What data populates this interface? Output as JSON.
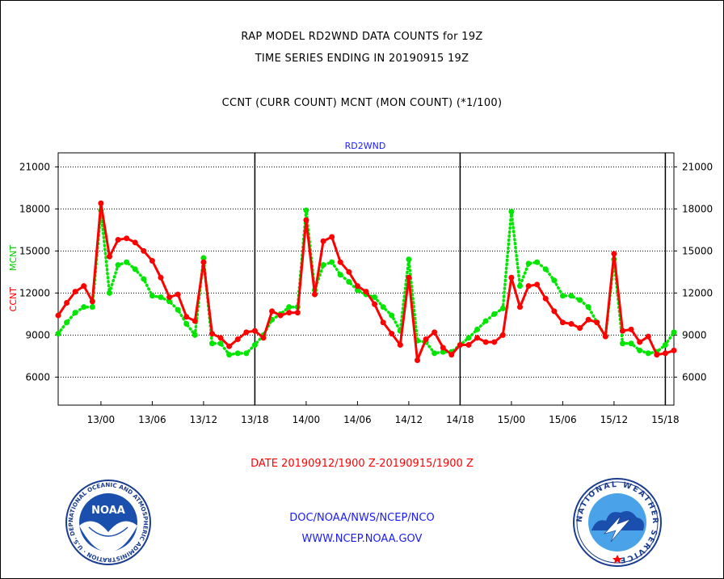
{
  "titles": {
    "line1": "RAP MODEL RD2WND DATA COUNTS for 19Z",
    "line2": "TIME SERIES ENDING IN 20190915 19Z",
    "line3": "CCNT (CURR COUNT) MCNT (MON COUNT) (*1/100)"
  },
  "footer": {
    "date_range": "DATE 20190912/1900 Z-20190915/1900 Z",
    "org": "DOC/NOAA/NWS/NCEP/NCO",
    "url": "WWW.NCEP.NOAA.GOV"
  },
  "logos": {
    "noaa_text": "NOAA",
    "noaa_ring": "NATIONAL OCEANIC AND ATMOSPHERIC ADMINISTRATION · U.S. DEPARTMENT OF COMMERCE ·",
    "nws_ring": "NATIONAL WEATHER SERVICE"
  },
  "colors": {
    "ccnt": "#ff0000",
    "mcnt": "#00e600",
    "label_blue": "#1a1aff"
  },
  "chart_data": {
    "type": "line",
    "title": "RD2WND",
    "ylabel_ccnt": "CCNT",
    "ylabel_mcnt": "MCNT",
    "ylim": [
      4000,
      22000
    ],
    "yticks": [
      6000,
      9000,
      12000,
      15000,
      18000,
      21000
    ],
    "ytick_labels": [
      "6000",
      "9000",
      "12000",
      "15000",
      "18000",
      "21000"
    ],
    "x_start_hour": 19,
    "x_hours": 72,
    "xticks": [
      {
        "hour": 24,
        "label": "13/00"
      },
      {
        "hour": 30,
        "label": "13/06"
      },
      {
        "hour": 36,
        "label": "13/12"
      },
      {
        "hour": 42,
        "label": "13/18"
      },
      {
        "hour": 48,
        "label": "14/00"
      },
      {
        "hour": 54,
        "label": "14/06"
      },
      {
        "hour": 60,
        "label": "14/12"
      },
      {
        "hour": 66,
        "label": "14/18"
      },
      {
        "hour": 72,
        "label": "15/00"
      },
      {
        "hour": 78,
        "label": "15/06"
      },
      {
        "hour": 84,
        "label": "15/12"
      },
      {
        "hour": 90,
        "label": "15/18"
      }
    ],
    "day_dividers": [
      42,
      66,
      90
    ],
    "grid": "horizontal-dotted",
    "series": [
      {
        "name": "CCNT",
        "values": [
          10400,
          11300,
          12100,
          12500,
          11400,
          18400,
          14600,
          15800,
          15900,
          15600,
          15000,
          14300,
          13100,
          11700,
          11900,
          10300,
          10000,
          14200,
          9100,
          8800,
          8200,
          8700,
          9200,
          9300,
          8800,
          10700,
          10400,
          10600,
          10600,
          17200,
          11900,
          15700,
          16000,
          14200,
          13500,
          12500,
          12100,
          11200,
          9900,
          9100,
          8300,
          13100,
          7200,
          8700,
          9200,
          8100,
          7600,
          8300,
          8300,
          8800,
          8500,
          8500,
          9000,
          13100,
          11000,
          12500,
          12600,
          11600,
          10700,
          9900,
          9800,
          9500,
          10100,
          9900,
          8900,
          14800,
          9300,
          9400,
          8500,
          8900,
          7600,
          7700,
          7900
        ]
      },
      {
        "name": "MCNT",
        "values": [
          9100,
          9900,
          10600,
          11000,
          11000,
          17900,
          12000,
          14000,
          14200,
          13700,
          13000,
          11800,
          11700,
          11400,
          10800,
          9800,
          9000,
          14500,
          8400,
          8400,
          7600,
          7700,
          7700,
          8300,
          9000,
          10100,
          10500,
          11000,
          11000,
          17900,
          12200,
          14000,
          14200,
          13300,
          12800,
          12200,
          11900,
          11700,
          11000,
          10400,
          9300,
          14400,
          8600,
          8500,
          7700,
          7800,
          7800,
          8300,
          8800,
          9400,
          10000,
          10500,
          10900,
          17800,
          12500,
          14100,
          14200,
          13700,
          12900,
          11800,
          11800,
          11500,
          11000,
          9900,
          8900,
          14400,
          8400,
          8400,
          7900,
          7700,
          7800,
          8300,
          9200
        ]
      }
    ]
  }
}
